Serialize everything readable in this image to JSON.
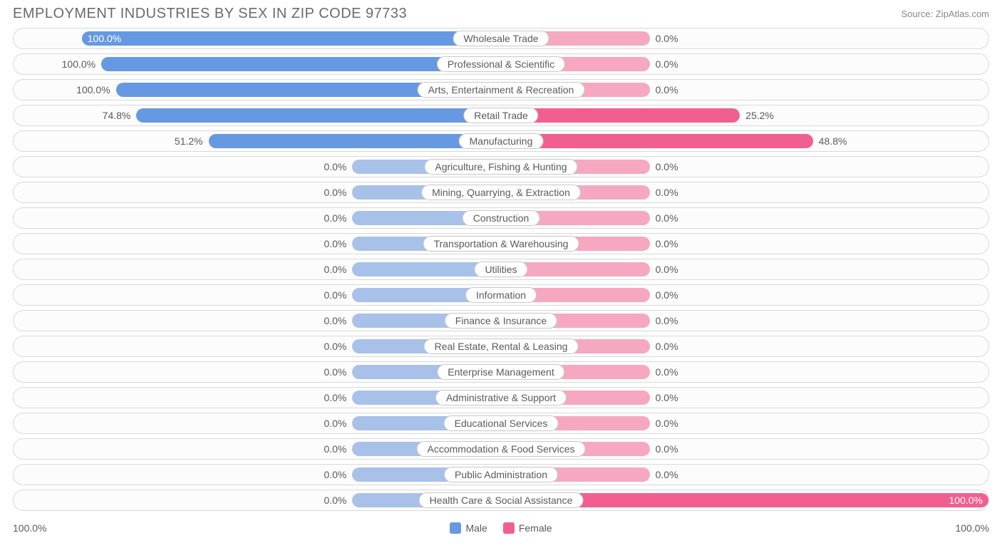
{
  "title": "EMPLOYMENT INDUSTRIES BY SEX IN ZIP CODE 97733",
  "source": "Source: ZipAtlas.com",
  "colors": {
    "male_strong": "#6699e1",
    "male_faint": "#a8c1e8",
    "female_strong": "#f15f90",
    "female_faint": "#f6a8c0",
    "row_border": "#d9d9d9",
    "row_bg": "#fcfcfc",
    "label_border": "#c9c9c9",
    "text": "#5a5a5a",
    "title_color": "#696a6c"
  },
  "chart": {
    "type": "diverging-bar",
    "axis_max_pct": 100.0,
    "default_bar_extent_pct": 12.0,
    "rows": [
      {
        "label": "Wholesale Trade",
        "male": 100.0,
        "female": 0.0,
        "male_bar": 86.0,
        "female_bar": 30.5,
        "emphasis": "male"
      },
      {
        "label": "Professional & Scientific",
        "male": 100.0,
        "female": 0.0,
        "male_bar": 82.0,
        "female_bar": 30.5,
        "emphasis": "male"
      },
      {
        "label": "Arts, Entertainment & Recreation",
        "male": 100.0,
        "female": 0.0,
        "male_bar": 79.0,
        "female_bar": 30.5,
        "emphasis": "male"
      },
      {
        "label": "Retail Trade",
        "male": 74.8,
        "female": 25.2,
        "male_bar": 74.8,
        "female_bar": 49.0,
        "emphasis": "both"
      },
      {
        "label": "Manufacturing",
        "male": 51.2,
        "female": 48.8,
        "male_bar": 60.0,
        "female_bar": 64.0,
        "emphasis": "both"
      },
      {
        "label": "Agriculture, Fishing & Hunting",
        "male": 0.0,
        "female": 0.0,
        "male_bar": 30.5,
        "female_bar": 30.5,
        "emphasis": "none"
      },
      {
        "label": "Mining, Quarrying, & Extraction",
        "male": 0.0,
        "female": 0.0,
        "male_bar": 30.5,
        "female_bar": 30.5,
        "emphasis": "none"
      },
      {
        "label": "Construction",
        "male": 0.0,
        "female": 0.0,
        "male_bar": 30.5,
        "female_bar": 30.5,
        "emphasis": "none"
      },
      {
        "label": "Transportation & Warehousing",
        "male": 0.0,
        "female": 0.0,
        "male_bar": 30.5,
        "female_bar": 30.5,
        "emphasis": "none"
      },
      {
        "label": "Utilities",
        "male": 0.0,
        "female": 0.0,
        "male_bar": 30.5,
        "female_bar": 30.5,
        "emphasis": "none"
      },
      {
        "label": "Information",
        "male": 0.0,
        "female": 0.0,
        "male_bar": 30.5,
        "female_bar": 30.5,
        "emphasis": "none"
      },
      {
        "label": "Finance & Insurance",
        "male": 0.0,
        "female": 0.0,
        "male_bar": 30.5,
        "female_bar": 30.5,
        "emphasis": "none"
      },
      {
        "label": "Real Estate, Rental & Leasing",
        "male": 0.0,
        "female": 0.0,
        "male_bar": 30.5,
        "female_bar": 30.5,
        "emphasis": "none"
      },
      {
        "label": "Enterprise Management",
        "male": 0.0,
        "female": 0.0,
        "male_bar": 30.5,
        "female_bar": 30.5,
        "emphasis": "none"
      },
      {
        "label": "Administrative & Support",
        "male": 0.0,
        "female": 0.0,
        "male_bar": 30.5,
        "female_bar": 30.5,
        "emphasis": "none"
      },
      {
        "label": "Educational Services",
        "male": 0.0,
        "female": 0.0,
        "male_bar": 30.5,
        "female_bar": 30.5,
        "emphasis": "none"
      },
      {
        "label": "Accommodation & Food Services",
        "male": 0.0,
        "female": 0.0,
        "male_bar": 30.5,
        "female_bar": 30.5,
        "emphasis": "none"
      },
      {
        "label": "Public Administration",
        "male": 0.0,
        "female": 0.0,
        "male_bar": 30.5,
        "female_bar": 30.5,
        "emphasis": "none"
      },
      {
        "label": "Health Care & Social Assistance",
        "male": 0.0,
        "female": 100.0,
        "male_bar": 30.5,
        "female_bar": 100.0,
        "emphasis": "female"
      }
    ]
  },
  "footer": {
    "left_axis": "100.0%",
    "right_axis": "100.0%",
    "legend": [
      {
        "label": "Male",
        "color_key": "male_strong"
      },
      {
        "label": "Female",
        "color_key": "female_strong"
      }
    ]
  }
}
